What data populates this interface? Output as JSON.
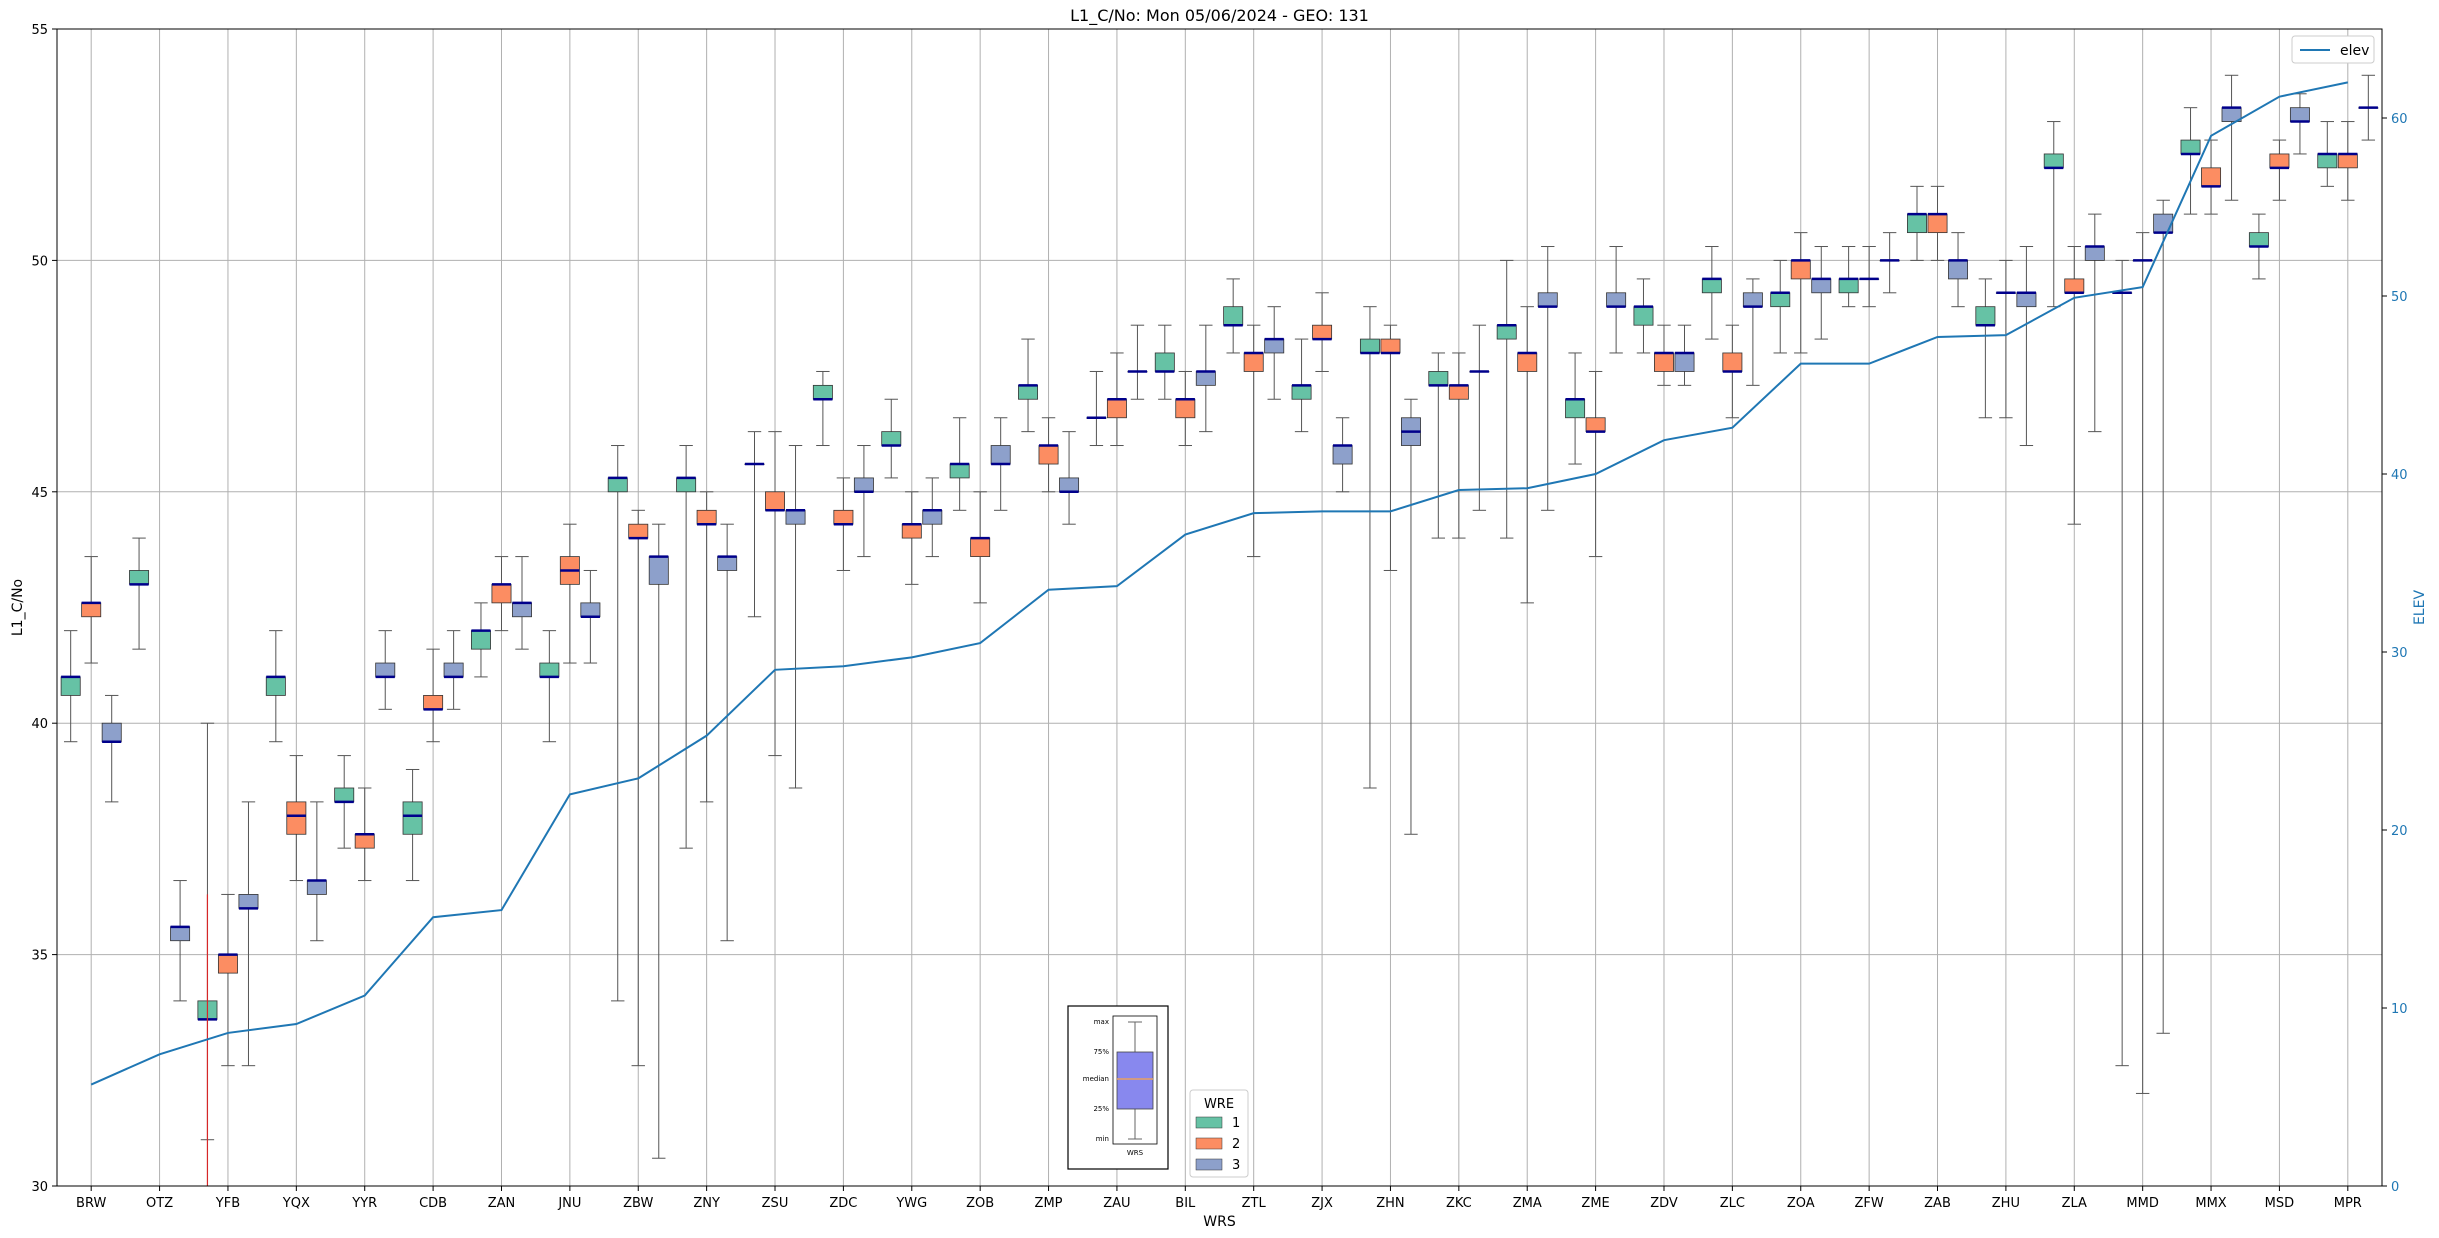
{
  "chart_data": {
    "type": "box",
    "title": "L1_C/No: Mon 05/06/2024 - GEO: 131",
    "xlabel": "WRS",
    "ylabel": "L1_C/No",
    "y2label": "ELEV",
    "ylim": [
      30,
      55
    ],
    "y2lim": [
      0,
      65
    ],
    "yticks": [
      "30",
      "35",
      "40",
      "45",
      "50",
      "55"
    ],
    "y2ticks": [
      "0",
      "10",
      "20",
      "30",
      "40",
      "50",
      "60"
    ],
    "grid": true,
    "colors": {
      "1": "#66c2a5",
      "2": "#fc8d62",
      "3": "#8da0cb",
      "elev": "#1f77b4",
      "median": "#00008b",
      "whisker": "#555555",
      "outlier": "#d62728"
    },
    "categories": [
      "BRW",
      "OTZ",
      "YFB",
      "YQX",
      "YYR",
      "CDB",
      "ZAN",
      "JNU",
      "ZBW",
      "ZNY",
      "ZSU",
      "ZDC",
      "YWG",
      "ZOB",
      "ZMP",
      "ZAU",
      "BIL",
      "ZTL",
      "ZJX",
      "ZHN",
      "ZKC",
      "ZMA",
      "ZME",
      "ZDV",
      "ZLC",
      "ZOA",
      "ZFW",
      "ZAB",
      "ZHU",
      "ZLA",
      "MMD",
      "MMX",
      "MSD",
      "MPR"
    ],
    "boxes": [
      {
        "cat": "BRW",
        "wre": 1,
        "min": 39.6,
        "q1": 40.6,
        "med": 41.0,
        "q3": 41.0,
        "max": 42.0
      },
      {
        "cat": "BRW",
        "wre": 2,
        "min": 41.3,
        "q1": 42.3,
        "med": 42.6,
        "q3": 42.6,
        "max": 43.6
      },
      {
        "cat": "BRW",
        "wre": 3,
        "min": 38.3,
        "q1": 39.6,
        "med": 39.6,
        "q3": 40.0,
        "max": 40.6
      },
      {
        "cat": "OTZ",
        "wre": 1,
        "min": 41.6,
        "q1": 43.0,
        "med": 43.0,
        "q3": 43.3,
        "max": 44.0
      },
      {
        "cat": "OTZ",
        "wre": 3,
        "min": 34.0,
        "q1": 35.3,
        "med": 35.6,
        "q3": 35.6,
        "max": 36.6
      },
      {
        "cat": "YFB",
        "wre": 1,
        "min": 31.0,
        "q1": 33.6,
        "med": 33.6,
        "q3": 34.0,
        "max": 40.0
      },
      {
        "cat": "YFB",
        "wre": 2,
        "min": 32.6,
        "q1": 34.6,
        "med": 35.0,
        "q3": 35.0,
        "max": 36.3
      },
      {
        "cat": "YFB",
        "wre": 3,
        "min": 32.6,
        "q1": 36.0,
        "med": 36.0,
        "q3": 36.3,
        "max": 38.3
      },
      {
        "cat": "YQX",
        "wre": 1,
        "min": 39.6,
        "q1": 40.6,
        "med": 41.0,
        "q3": 41.0,
        "max": 42.0
      },
      {
        "cat": "YQX",
        "wre": 2,
        "min": 36.6,
        "q1": 37.6,
        "med": 38.0,
        "q3": 38.3,
        "max": 39.3
      },
      {
        "cat": "YQX",
        "wre": 3,
        "min": 35.3,
        "q1": 36.3,
        "med": 36.6,
        "q3": 36.6,
        "max": 38.3
      },
      {
        "cat": "YYR",
        "wre": 1,
        "min": 37.3,
        "q1": 38.3,
        "med": 38.3,
        "q3": 38.6,
        "max": 39.3
      },
      {
        "cat": "YYR",
        "wre": 2,
        "min": 36.6,
        "q1": 37.3,
        "med": 37.6,
        "q3": 37.6,
        "max": 38.6
      },
      {
        "cat": "YYR",
        "wre": 3,
        "min": 40.3,
        "q1": 41.0,
        "med": 41.0,
        "q3": 41.3,
        "max": 42.0
      },
      {
        "cat": "CDB",
        "wre": 1,
        "min": 36.6,
        "q1": 37.6,
        "med": 38.0,
        "q3": 38.3,
        "max": 39.0
      },
      {
        "cat": "CDB",
        "wre": 2,
        "min": 39.6,
        "q1": 40.3,
        "med": 40.3,
        "q3": 40.6,
        "max": 41.6
      },
      {
        "cat": "CDB",
        "wre": 3,
        "min": 40.3,
        "q1": 41.0,
        "med": 41.0,
        "q3": 41.3,
        "max": 42.0
      },
      {
        "cat": "ZAN",
        "wre": 1,
        "min": 41.0,
        "q1": 41.6,
        "med": 42.0,
        "q3": 42.0,
        "max": 42.6
      },
      {
        "cat": "ZAN",
        "wre": 2,
        "min": 42.0,
        "q1": 42.6,
        "med": 43.0,
        "q3": 43.0,
        "max": 43.6
      },
      {
        "cat": "ZAN",
        "wre": 3,
        "min": 41.6,
        "q1": 42.3,
        "med": 42.6,
        "q3": 42.6,
        "max": 43.6
      },
      {
        "cat": "JNU",
        "wre": 1,
        "min": 39.6,
        "q1": 41.0,
        "med": 41.0,
        "q3": 41.3,
        "max": 42.0
      },
      {
        "cat": "JNU",
        "wre": 2,
        "min": 41.3,
        "q1": 43.0,
        "med": 43.3,
        "q3": 43.6,
        "max": 44.3
      },
      {
        "cat": "JNU",
        "wre": 3,
        "min": 41.3,
        "q1": 42.3,
        "med": 42.3,
        "q3": 42.6,
        "max": 43.3
      },
      {
        "cat": "ZBW",
        "wre": 1,
        "min": 34.0,
        "q1": 45.0,
        "med": 45.3,
        "q3": 45.3,
        "max": 46.0
      },
      {
        "cat": "ZBW",
        "wre": 2,
        "min": 32.6,
        "q1": 44.0,
        "med": 44.0,
        "q3": 44.3,
        "max": 44.6
      },
      {
        "cat": "ZBW",
        "wre": 3,
        "min": 30.6,
        "q1": 43.0,
        "med": 43.6,
        "q3": 43.6,
        "max": 44.3
      },
      {
        "cat": "ZNY",
        "wre": 1,
        "min": 37.3,
        "q1": 45.0,
        "med": 45.3,
        "q3": 45.3,
        "max": 46.0
      },
      {
        "cat": "ZNY",
        "wre": 2,
        "min": 38.3,
        "q1": 44.3,
        "med": 44.3,
        "q3": 44.6,
        "max": 45.0
      },
      {
        "cat": "ZNY",
        "wre": 3,
        "min": 35.3,
        "q1": 43.3,
        "med": 43.6,
        "q3": 43.6,
        "max": 44.3
      },
      {
        "cat": "ZSU",
        "wre": 1,
        "min": 42.3,
        "q1": 45.6,
        "med": 45.6,
        "q3": 45.6,
        "max": 46.3
      },
      {
        "cat": "ZSU",
        "wre": 2,
        "min": 39.3,
        "q1": 44.6,
        "med": 44.6,
        "q3": 45.0,
        "max": 46.3
      },
      {
        "cat": "ZSU",
        "wre": 3,
        "min": 38.6,
        "q1": 44.3,
        "med": 44.6,
        "q3": 44.6,
        "max": 46.0
      },
      {
        "cat": "ZDC",
        "wre": 1,
        "min": 46.0,
        "q1": 47.0,
        "med": 47.0,
        "q3": 47.3,
        "max": 47.6
      },
      {
        "cat": "ZDC",
        "wre": 2,
        "min": 43.3,
        "q1": 44.3,
        "med": 44.3,
        "q3": 44.6,
        "max": 45.3
      },
      {
        "cat": "ZDC",
        "wre": 3,
        "min": 43.6,
        "q1": 45.0,
        "med": 45.0,
        "q3": 45.3,
        "max": 46.0
      },
      {
        "cat": "YWG",
        "wre": 1,
        "min": 45.3,
        "q1": 46.0,
        "med": 46.0,
        "q3": 46.3,
        "max": 47.0
      },
      {
        "cat": "YWG",
        "wre": 2,
        "min": 43.0,
        "q1": 44.0,
        "med": 44.3,
        "q3": 44.3,
        "max": 45.0
      },
      {
        "cat": "YWG",
        "wre": 3,
        "min": 43.6,
        "q1": 44.3,
        "med": 44.6,
        "q3": 44.6,
        "max": 45.3
      },
      {
        "cat": "ZOB",
        "wre": 1,
        "min": 44.6,
        "q1": 45.3,
        "med": 45.6,
        "q3": 45.6,
        "max": 46.6
      },
      {
        "cat": "ZOB",
        "wre": 2,
        "min": 42.6,
        "q1": 43.6,
        "med": 44.0,
        "q3": 44.0,
        "max": 45.0
      },
      {
        "cat": "ZOB",
        "wre": 3,
        "min": 44.6,
        "q1": 45.6,
        "med": 45.6,
        "q3": 46.0,
        "max": 46.6
      },
      {
        "cat": "ZMP",
        "wre": 1,
        "min": 46.3,
        "q1": 47.0,
        "med": 47.3,
        "q3": 47.3,
        "max": 48.3
      },
      {
        "cat": "ZMP",
        "wre": 2,
        "min": 45.0,
        "q1": 45.6,
        "med": 46.0,
        "q3": 46.0,
        "max": 46.6
      },
      {
        "cat": "ZMP",
        "wre": 3,
        "min": 44.3,
        "q1": 45.0,
        "med": 45.0,
        "q3": 45.3,
        "max": 46.3
      },
      {
        "cat": "ZAU",
        "wre": 1,
        "min": 46.0,
        "q1": 46.6,
        "med": 46.6,
        "q3": 46.6,
        "max": 47.6
      },
      {
        "cat": "ZAU",
        "wre": 2,
        "min": 46.0,
        "q1": 46.6,
        "med": 47.0,
        "q3": 47.0,
        "max": 48.0
      },
      {
        "cat": "ZAU",
        "wre": 3,
        "min": 47.0,
        "q1": 47.6,
        "med": 47.6,
        "q3": 47.6,
        "max": 48.6
      },
      {
        "cat": "BIL",
        "wre": 1,
        "min": 47.0,
        "q1": 47.6,
        "med": 47.6,
        "q3": 48.0,
        "max": 48.6
      },
      {
        "cat": "BIL",
        "wre": 2,
        "min": 46.0,
        "q1": 46.6,
        "med": 47.0,
        "q3": 47.0,
        "max": 47.6
      },
      {
        "cat": "BIL",
        "wre": 3,
        "min": 46.3,
        "q1": 47.3,
        "med": 47.6,
        "q3": 47.6,
        "max": 48.6
      },
      {
        "cat": "ZTL",
        "wre": 1,
        "min": 48.0,
        "q1": 48.6,
        "med": 48.6,
        "q3": 49.0,
        "max": 49.6
      },
      {
        "cat": "ZTL",
        "wre": 2,
        "min": 43.6,
        "q1": 47.6,
        "med": 48.0,
        "q3": 48.0,
        "max": 48.6
      },
      {
        "cat": "ZTL",
        "wre": 3,
        "min": 47.0,
        "q1": 48.0,
        "med": 48.3,
        "q3": 48.3,
        "max": 49.0
      },
      {
        "cat": "ZJX",
        "wre": 1,
        "min": 46.3,
        "q1": 47.0,
        "med": 47.3,
        "q3": 47.3,
        "max": 48.3
      },
      {
        "cat": "ZJX",
        "wre": 2,
        "min": 47.6,
        "q1": 48.3,
        "med": 48.3,
        "q3": 48.6,
        "max": 49.3
      },
      {
        "cat": "ZJX",
        "wre": 3,
        "min": 45.0,
        "q1": 45.6,
        "med": 46.0,
        "q3": 46.0,
        "max": 46.6
      },
      {
        "cat": "ZHN",
        "wre": 1,
        "min": 38.6,
        "q1": 48.0,
        "med": 48.0,
        "q3": 48.3,
        "max": 49.0
      },
      {
        "cat": "ZHN",
        "wre": 2,
        "min": 43.3,
        "q1": 48.0,
        "med": 48.0,
        "q3": 48.3,
        "max": 48.6
      },
      {
        "cat": "ZHN",
        "wre": 3,
        "min": 37.6,
        "q1": 46.0,
        "med": 46.3,
        "q3": 46.6,
        "max": 47.0
      },
      {
        "cat": "ZKC",
        "wre": 1,
        "min": 44.0,
        "q1": 47.3,
        "med": 47.3,
        "q3": 47.6,
        "max": 48.0
      },
      {
        "cat": "ZKC",
        "wre": 2,
        "min": 44.0,
        "q1": 47.0,
        "med": 47.3,
        "q3": 47.3,
        "max": 48.0
      },
      {
        "cat": "ZKC",
        "wre": 3,
        "min": 44.6,
        "q1": 47.6,
        "med": 47.6,
        "q3": 47.6,
        "max": 48.6
      },
      {
        "cat": "ZMA",
        "wre": 1,
        "min": 44.0,
        "q1": 48.3,
        "med": 48.6,
        "q3": 48.6,
        "max": 50.0
      },
      {
        "cat": "ZMA",
        "wre": 2,
        "min": 42.6,
        "q1": 47.6,
        "med": 48.0,
        "q3": 48.0,
        "max": 49.0
      },
      {
        "cat": "ZMA",
        "wre": 3,
        "min": 44.6,
        "q1": 49.0,
        "med": 49.0,
        "q3": 49.3,
        "max": 50.3
      },
      {
        "cat": "ZME",
        "wre": 1,
        "min": 45.6,
        "q1": 46.6,
        "med": 47.0,
        "q3": 47.0,
        "max": 48.0
      },
      {
        "cat": "ZME",
        "wre": 2,
        "min": 43.6,
        "q1": 46.3,
        "med": 46.3,
        "q3": 46.6,
        "max": 47.6
      },
      {
        "cat": "ZME",
        "wre": 3,
        "min": 48.0,
        "q1": 49.0,
        "med": 49.0,
        "q3": 49.3,
        "max": 50.3
      },
      {
        "cat": "ZDV",
        "wre": 1,
        "min": 48.0,
        "q1": 48.6,
        "med": 49.0,
        "q3": 49.0,
        "max": 49.6
      },
      {
        "cat": "ZDV",
        "wre": 2,
        "min": 47.3,
        "q1": 47.6,
        "med": 48.0,
        "q3": 48.0,
        "max": 48.6
      },
      {
        "cat": "ZDV",
        "wre": 3,
        "min": 47.3,
        "q1": 47.6,
        "med": 48.0,
        "q3": 48.0,
        "max": 48.6
      },
      {
        "cat": "ZLC",
        "wre": 1,
        "min": 48.3,
        "q1": 49.3,
        "med": 49.6,
        "q3": 49.6,
        "max": 50.3
      },
      {
        "cat": "ZLC",
        "wre": 2,
        "min": 46.6,
        "q1": 47.6,
        "med": 47.6,
        "q3": 48.0,
        "max": 48.6
      },
      {
        "cat": "ZLC",
        "wre": 3,
        "min": 47.3,
        "q1": 49.0,
        "med": 49.0,
        "q3": 49.3,
        "max": 49.6
      },
      {
        "cat": "ZOA",
        "wre": 1,
        "min": 48.0,
        "q1": 49.0,
        "med": 49.3,
        "q3": 49.3,
        "max": 50.0
      },
      {
        "cat": "ZOA",
        "wre": 2,
        "min": 48.0,
        "q1": 49.6,
        "med": 50.0,
        "q3": 50.0,
        "max": 50.6
      },
      {
        "cat": "ZOA",
        "wre": 3,
        "min": 48.3,
        "q1": 49.3,
        "med": 49.6,
        "q3": 49.6,
        "max": 50.3
      },
      {
        "cat": "ZFW",
        "wre": 1,
        "min": 49.0,
        "q1": 49.3,
        "med": 49.6,
        "q3": 49.6,
        "max": 50.3
      },
      {
        "cat": "ZFW",
        "wre": 2,
        "min": 49.0,
        "q1": 49.6,
        "med": 49.6,
        "q3": 49.6,
        "max": 50.3
      },
      {
        "cat": "ZFW",
        "wre": 3,
        "min": 49.3,
        "q1": 50.0,
        "med": 50.0,
        "q3": 50.0,
        "max": 50.6
      },
      {
        "cat": "ZAB",
        "wre": 1,
        "min": 50.0,
        "q1": 50.6,
        "med": 51.0,
        "q3": 51.0,
        "max": 51.6
      },
      {
        "cat": "ZAB",
        "wre": 2,
        "min": 50.0,
        "q1": 50.6,
        "med": 51.0,
        "q3": 51.0,
        "max": 51.6
      },
      {
        "cat": "ZAB",
        "wre": 3,
        "min": 49.0,
        "q1": 49.6,
        "med": 50.0,
        "q3": 50.0,
        "max": 50.6
      },
      {
        "cat": "ZHU",
        "wre": 1,
        "min": 46.6,
        "q1": 48.6,
        "med": 48.6,
        "q3": 49.0,
        "max": 49.6
      },
      {
        "cat": "ZHU",
        "wre": 2,
        "min": 46.6,
        "q1": 49.3,
        "med": 49.3,
        "q3": 49.3,
        "max": 50.0
      },
      {
        "cat": "ZHU",
        "wre": 3,
        "min": 46.0,
        "q1": 49.0,
        "med": 49.3,
        "q3": 49.3,
        "max": 50.3
      },
      {
        "cat": "ZLA",
        "wre": 1,
        "min": 49.0,
        "q1": 52.0,
        "med": 52.0,
        "q3": 52.3,
        "max": 53.0
      },
      {
        "cat": "ZLA",
        "wre": 2,
        "min": 44.3,
        "q1": 49.3,
        "med": 49.3,
        "q3": 49.6,
        "max": 50.3
      },
      {
        "cat": "ZLA",
        "wre": 3,
        "min": 46.3,
        "q1": 50.0,
        "med": 50.3,
        "q3": 50.3,
        "max": 51.0
      },
      {
        "cat": "MMD",
        "wre": 1,
        "min": 32.6,
        "q1": 49.3,
        "med": 49.3,
        "q3": 49.3,
        "max": 50.0
      },
      {
        "cat": "MMD",
        "wre": 2,
        "min": 32.0,
        "q1": 50.0,
        "med": 50.0,
        "q3": 50.0,
        "max": 50.6
      },
      {
        "cat": "MMD",
        "wre": 3,
        "min": 33.3,
        "q1": 50.6,
        "med": 50.6,
        "q3": 51.0,
        "max": 51.3
      },
      {
        "cat": "MMX",
        "wre": 1,
        "min": 51.0,
        "q1": 52.3,
        "med": 52.3,
        "q3": 52.6,
        "max": 53.3
      },
      {
        "cat": "MMX",
        "wre": 2,
        "min": 51.0,
        "q1": 51.6,
        "med": 51.6,
        "q3": 52.0,
        "max": 52.6
      },
      {
        "cat": "MMX",
        "wre": 3,
        "min": 51.3,
        "q1": 53.0,
        "med": 53.3,
        "q3": 53.3,
        "max": 54.0
      },
      {
        "cat": "MSD",
        "wre": 1,
        "min": 49.6,
        "q1": 50.3,
        "med": 50.3,
        "q3": 50.6,
        "max": 51.0
      },
      {
        "cat": "MSD",
        "wre": 2,
        "min": 51.3,
        "q1": 52.0,
        "med": 52.0,
        "q3": 52.3,
        "max": 52.6
      },
      {
        "cat": "MSD",
        "wre": 3,
        "min": 52.3,
        "q1": 53.0,
        "med": 53.0,
        "q3": 53.3,
        "max": 53.6
      },
      {
        "cat": "MPR",
        "wre": 1,
        "min": 51.6,
        "q1": 52.0,
        "med": 52.3,
        "q3": 52.3,
        "max": 53.0
      },
      {
        "cat": "MPR",
        "wre": 2,
        "min": 51.3,
        "q1": 52.0,
        "med": 52.3,
        "q3": 52.3,
        "max": 53.0
      },
      {
        "cat": "MPR",
        "wre": 3,
        "min": 52.6,
        "q1": 53.3,
        "med": 53.3,
        "q3": 53.3,
        "max": 54.0
      }
    ],
    "outliers": [
      {
        "cat": "YFB",
        "wre": 1,
        "from": 36.3,
        "to": 30.0
      }
    ],
    "elev": [
      5.7,
      7.4,
      8.6,
      9.1,
      10.7,
      15.1,
      15.5,
      22.0,
      22.9,
      25.3,
      29.0,
      29.2,
      29.7,
      30.5,
      33.5,
      33.7,
      36.6,
      37.8,
      37.9,
      37.9,
      39.1,
      39.2,
      40.0,
      41.9,
      42.6,
      46.2,
      46.2,
      47.7,
      47.8,
      49.9,
      50.5,
      59.0,
      61.2,
      62.0
    ],
    "legend": {
      "title": "WRE",
      "items": [
        "1",
        "2",
        "3"
      ],
      "position": "bottom-center"
    },
    "elev_legend": "elev",
    "key_inset": {
      "labels": [
        "max",
        "75%",
        "median",
        "25%",
        "min"
      ],
      "xlabel": "WRS"
    }
  }
}
